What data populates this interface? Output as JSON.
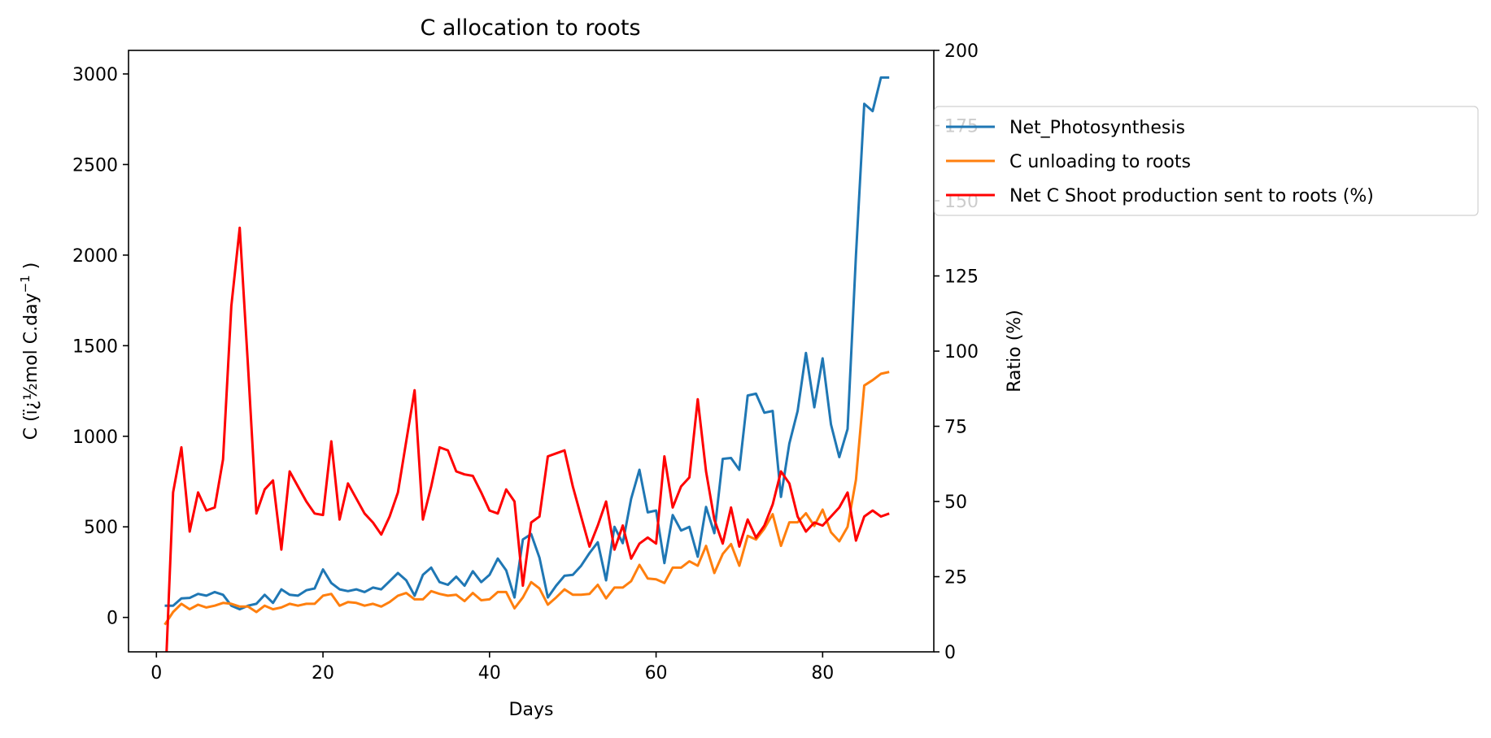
{
  "chart_data": {
    "type": "line",
    "title": "C allocation to roots",
    "xlabel": "Days",
    "ylabel": "C (ï¿½mol C.day⁻¹ )",
    "ylabel_main": "C (ï¿½mol C.day",
    "ylabel_sup": "−1",
    "ylabel_end": " )",
    "y2label": "Ratio (%)",
    "xlim": [
      -3.35,
      93.35
    ],
    "ylim": [
      -190,
      3130
    ],
    "y2lim": [
      0,
      200
    ],
    "xticks": [
      0,
      20,
      40,
      60,
      80
    ],
    "yticks": [
      0,
      500,
      1000,
      1500,
      2000,
      2500,
      3000
    ],
    "y2ticks": [
      0,
      25,
      50,
      75,
      100,
      125,
      150,
      175,
      200
    ],
    "grid": false,
    "legend_position": "upper-right-outside",
    "x": [
      1,
      2,
      3,
      4,
      5,
      6,
      7,
      8,
      9,
      10,
      11,
      12,
      13,
      14,
      15,
      16,
      17,
      18,
      19,
      20,
      21,
      22,
      23,
      24,
      25,
      26,
      27,
      28,
      29,
      30,
      31,
      32,
      33,
      34,
      35,
      36,
      37,
      38,
      39,
      40,
      41,
      42,
      43,
      44,
      45,
      46,
      47,
      48,
      49,
      50,
      51,
      52,
      53,
      54,
      55,
      56,
      57,
      58,
      59,
      60,
      61,
      62,
      63,
      64,
      65,
      66,
      67,
      68,
      69,
      70,
      71,
      72,
      73,
      74,
      75,
      76,
      77,
      78,
      79,
      80,
      81,
      82,
      83,
      84,
      85,
      86,
      87,
      88
    ],
    "series": [
      {
        "name": "Net_Photosynthesis",
        "color": "#1f77b4",
        "axis": "left",
        "values": [
          65,
          65,
          105,
          108,
          130,
          120,
          140,
          125,
          65,
          45,
          65,
          75,
          125,
          80,
          155,
          125,
          120,
          150,
          160,
          265,
          190,
          155,
          145,
          155,
          140,
          165,
          155,
          200,
          245,
          205,
          120,
          235,
          275,
          195,
          180,
          225,
          175,
          255,
          195,
          235,
          325,
          260,
          110,
          430,
          460,
          330,
          110,
          175,
          230,
          235,
          285,
          355,
          415,
          205,
          500,
          410,
          655,
          815,
          580,
          590,
          300,
          565,
          480,
          500,
          335,
          610,
          465,
          875,
          880,
          815,
          1225,
          1235,
          1130,
          1140,
          665,
          960,
          1140,
          1460,
          1160,
          1430,
          1065,
          885,
          1040,
          2000,
          2835,
          2795,
          2980,
          2980
        ]
      },
      {
        "name": "C unloading to roots",
        "color": "#ff7f0e",
        "axis": "left",
        "values": [
          -40,
          30,
          75,
          45,
          70,
          55,
          65,
          80,
          75,
          60,
          60,
          30,
          65,
          45,
          55,
          75,
          65,
          75,
          75,
          120,
          130,
          65,
          85,
          80,
          65,
          75,
          60,
          85,
          120,
          135,
          100,
          100,
          145,
          130,
          120,
          125,
          90,
          135,
          95,
          100,
          140,
          140,
          50,
          110,
          195,
          160,
          70,
          110,
          155,
          125,
          125,
          130,
          180,
          105,
          165,
          165,
          200,
          290,
          215,
          210,
          190,
          275,
          275,
          310,
          285,
          395,
          245,
          350,
          405,
          285,
          450,
          430,
          490,
          570,
          395,
          525,
          525,
          575,
          505,
          595,
          470,
          420,
          500,
          760,
          1280,
          1310,
          1345,
          1355
        ]
      },
      {
        "name": "Net C Shoot production sent to roots (%)",
        "color": "#ff0000",
        "axis": "right",
        "values": [
          -15,
          53,
          68,
          40,
          53,
          47,
          48,
          64,
          115,
          141,
          95,
          46,
          54,
          57,
          34,
          60,
          55,
          50,
          46,
          45.5,
          70,
          44,
          56,
          51,
          46,
          43,
          39,
          45,
          53,
          70,
          87,
          44,
          55,
          68,
          67,
          60,
          59,
          58.5,
          53,
          47,
          46,
          54,
          50,
          22,
          43,
          45,
          65,
          66,
          67,
          55,
          45,
          35,
          42,
          50,
          34,
          42,
          31,
          36,
          38,
          36,
          65,
          48,
          55,
          58,
          84,
          60,
          44,
          36,
          48,
          35,
          44,
          38,
          42,
          49,
          60,
          56,
          45,
          40,
          43,
          42,
          45,
          48,
          53,
          37,
          45,
          47,
          45,
          46
        ]
      }
    ]
  }
}
